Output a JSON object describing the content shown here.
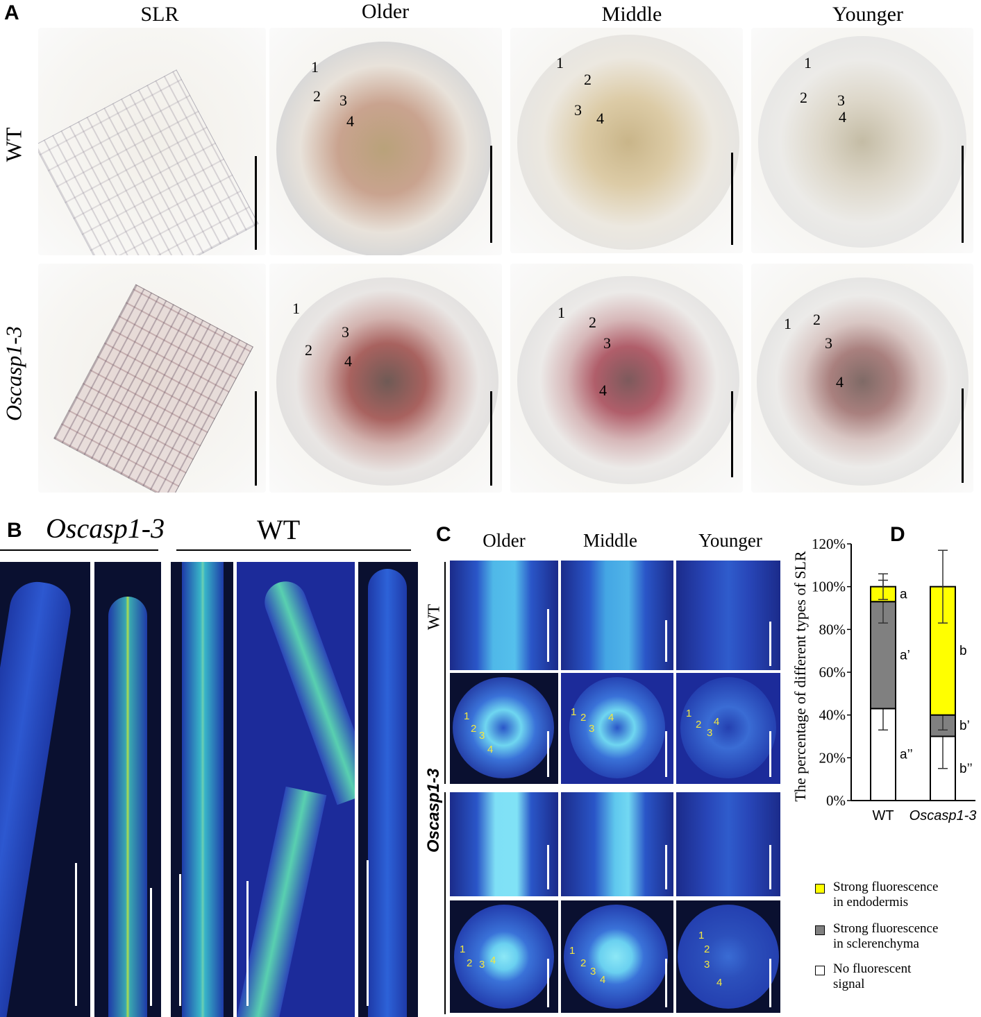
{
  "panels": {
    "A": "A",
    "B": "B",
    "C": "C",
    "D": "D"
  },
  "panel_a": {
    "columns": [
      "SLR",
      "Older",
      "Middle",
      "Younger"
    ],
    "rows": [
      "WT",
      "Oscasp1-3"
    ],
    "cell_labels": [
      "1",
      "2",
      "3",
      "4"
    ]
  },
  "panel_b": {
    "left_group": "Oscasp1-3",
    "right_group": "WT"
  },
  "panel_c": {
    "columns": [
      "Older",
      "Middle",
      "Younger"
    ],
    "rows": [
      "WT",
      "Oscasp1-3"
    ],
    "cell_labels": [
      "1",
      "2",
      "3",
      "4"
    ]
  },
  "chart_data": {
    "type": "bar",
    "stacked": true,
    "categories": [
      "WT",
      "Oscasp1-3"
    ],
    "ylabel": "The percentage of different types of SLR",
    "ylim": [
      0,
      120
    ],
    "yticks": [
      "0%",
      "20%",
      "40%",
      "60%",
      "80%",
      "100%",
      "120%"
    ],
    "series": [
      {
        "name": "No fluorescent signal",
        "color": "#ffffff",
        "values": [
          43,
          30
        ],
        "errors": [
          10,
          15
        ],
        "letters": [
          "a’’",
          "b’’"
        ]
      },
      {
        "name": "Strong fluorescence in sclerenchyma",
        "color": "#808080",
        "values": [
          50,
          10
        ],
        "errors": [
          10,
          7
        ],
        "letters": [
          "a’",
          "b’"
        ]
      },
      {
        "name": "Strong fluorescence in endodermis",
        "color": "#ffff00",
        "values": [
          7,
          60
        ],
        "errors": [
          6,
          17
        ],
        "letters": [
          "a",
          "b"
        ]
      }
    ],
    "legend": [
      {
        "line1": "Strong fluorescence",
        "line2": "in endodermis",
        "color": "#ffff00"
      },
      {
        "line1": "Strong fluorescence",
        "line2": "in sclerenchyma",
        "color": "#808080"
      },
      {
        "line1": "No fluorescent",
        "line2": "signal",
        "color": "#ffffff"
      }
    ],
    "legend_position": "bottom"
  }
}
